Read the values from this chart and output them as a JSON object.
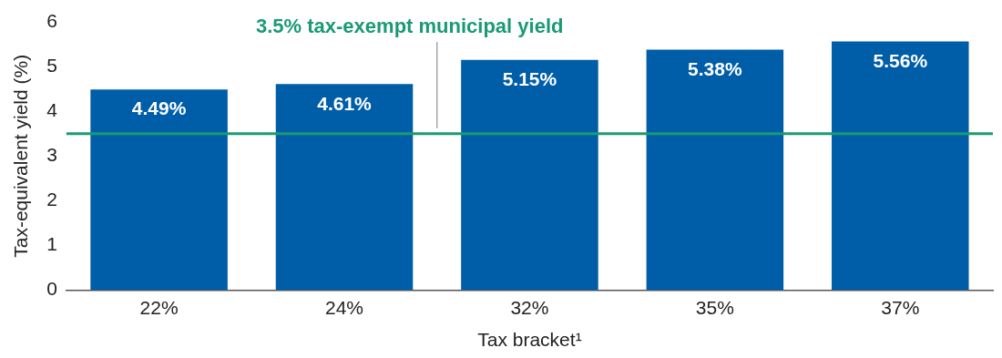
{
  "chart_data": {
    "type": "bar",
    "xlabel": "Tax bracket¹",
    "ylabel": "Tax-equivalent yield (%)",
    "categories": [
      "22%",
      "24%",
      "32%",
      "35%",
      "37%"
    ],
    "values": [
      4.49,
      4.61,
      5.15,
      5.38,
      5.56
    ],
    "color": "#005ea8",
    "value_labels": [
      "4.49%",
      "4.61%",
      "5.15%",
      "5.38%",
      "5.56%"
    ],
    "ylim": [
      0,
      6
    ],
    "yticks": [
      0,
      1,
      2,
      3,
      4,
      5,
      6
    ],
    "grid": false,
    "legend": false,
    "ref_lines": [
      {
        "axis": "y",
        "value": 3.5,
        "label": "3.5% tax-exempt municipal yield",
        "color": "#1a9a74",
        "line_style": "solid"
      }
    ]
  }
}
